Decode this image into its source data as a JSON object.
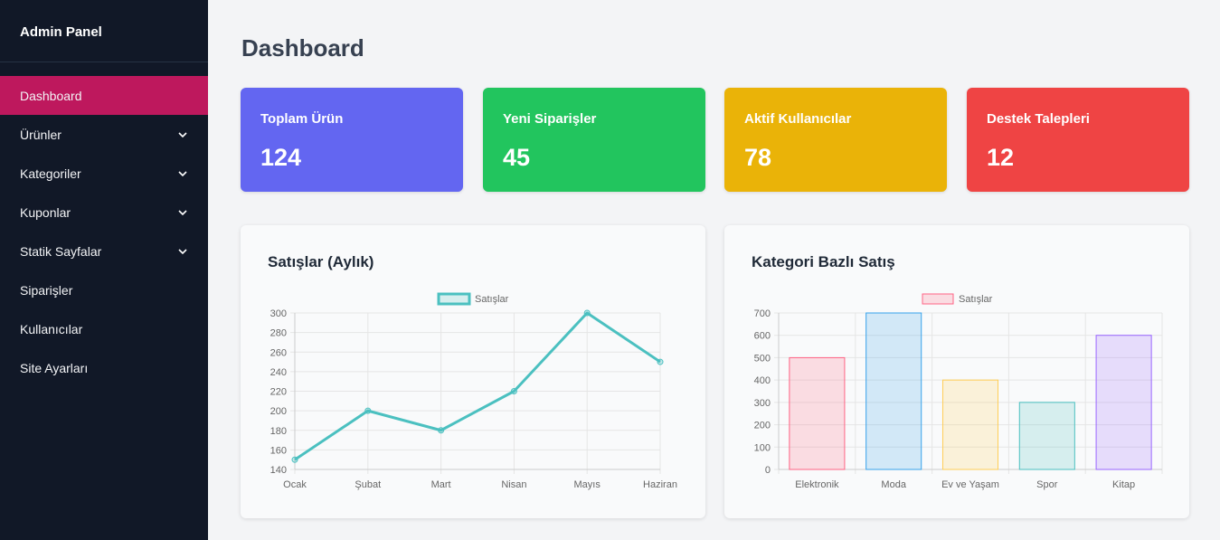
{
  "sidebar": {
    "brand": "Admin Panel",
    "items": [
      {
        "label": "Dashboard",
        "active": true,
        "expandable": false
      },
      {
        "label": "Ürünler",
        "active": false,
        "expandable": true
      },
      {
        "label": "Kategoriler",
        "active": false,
        "expandable": true
      },
      {
        "label": "Kuponlar",
        "active": false,
        "expandable": true
      },
      {
        "label": "Statik Sayfalar",
        "active": false,
        "expandable": true
      },
      {
        "label": "Siparişler",
        "active": false,
        "expandable": false
      },
      {
        "label": "Kullanıcılar",
        "active": false,
        "expandable": false
      },
      {
        "label": "Site Ayarları",
        "active": false,
        "expandable": false
      }
    ]
  },
  "main": {
    "title": "Dashboard",
    "stats": [
      {
        "label": "Toplam Ürün",
        "value": "124",
        "color": "#6366f1"
      },
      {
        "label": "Yeni Siparişler",
        "value": "45",
        "color": "#22c55e"
      },
      {
        "label": "Aktif Kullanıcılar",
        "value": "78",
        "color": "#eab308"
      },
      {
        "label": "Destek Talepleri",
        "value": "12",
        "color": "#ef4444"
      }
    ],
    "cards": [
      {
        "title": "Satışlar (Aylık)"
      },
      {
        "title": "Kategori Bazlı Satış"
      }
    ]
  },
  "chart_data": [
    {
      "type": "line",
      "title": "Satışlar (Aylık)",
      "categories": [
        "Ocak",
        "Şubat",
        "Mart",
        "Nisan",
        "Mayıs",
        "Haziran"
      ],
      "series": [
        {
          "name": "Satışlar",
          "values": [
            150,
            200,
            180,
            220,
            300,
            250
          ],
          "color": "#4bc0c0"
        }
      ],
      "yticks": [
        140,
        160,
        180,
        200,
        220,
        240,
        260,
        280,
        300
      ],
      "ylim": [
        140,
        300
      ],
      "grid": true,
      "legend": "top"
    },
    {
      "type": "bar",
      "title": "Kategori Bazlı Satış",
      "categories": [
        "Elektronik",
        "Moda",
        "Ev ve Yaşam",
        "Spor",
        "Kitap"
      ],
      "series": [
        {
          "name": "Satışlar",
          "values": [
            500,
            700,
            400,
            300,
            600
          ]
        }
      ],
      "bar_colors": [
        "#ff6384",
        "#36a2eb",
        "#ffce56",
        "#4bc0c0",
        "#9966ff"
      ],
      "yticks": [
        0,
        100,
        200,
        300,
        400,
        500,
        600,
        700
      ],
      "ylim": [
        0,
        700
      ],
      "grid": true,
      "legend": "top"
    }
  ]
}
